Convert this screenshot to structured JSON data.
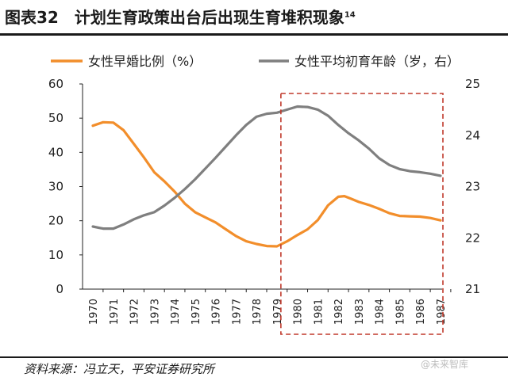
{
  "header": {
    "title": "图表32　计划生育政策出台后出现生育堆积现象",
    "note_ref": "14"
  },
  "footer": {
    "source": "资料来源：冯立天，平安证券研究所",
    "watermark": "@未来智库"
  },
  "chart_data": {
    "type": "line",
    "title": "计划生育政策出台后出现生育堆积现象",
    "x_categories": [
      "1970",
      "1971",
      "1972",
      "1973",
      "1974",
      "1975",
      "1976",
      "1977",
      "1978",
      "1979",
      "1980",
      "1981",
      "1982",
      "1983",
      "1984",
      "1985",
      "1986",
      "1987"
    ],
    "series": [
      {
        "name": "女性早婚比例（%）",
        "axis": "left",
        "color": "#F28E2B",
        "x": [
          1970,
          1970.5,
          1971,
          1971.5,
          1972,
          1972.5,
          1973,
          1973.5,
          1974,
          1974.5,
          1975,
          1975.5,
          1976,
          1976.5,
          1977,
          1977.5,
          1978,
          1978.5,
          1979,
          1979.5,
          1980,
          1980.5,
          1981,
          1981.5,
          1982,
          1982.3,
          1982.6,
          1983,
          1983.5,
          1984,
          1984.5,
          1985,
          1985.5,
          1986,
          1986.5,
          1987
        ],
        "values": [
          47.8,
          48.8,
          48.7,
          46.5,
          42.5,
          38.5,
          34.2,
          31.5,
          28.5,
          25.0,
          22.5,
          21.0,
          19.5,
          17.5,
          15.5,
          14.0,
          13.2,
          12.6,
          12.5,
          14.0,
          15.8,
          17.5,
          20.2,
          24.5,
          27.0,
          27.2,
          26.5,
          25.5,
          24.6,
          23.5,
          22.2,
          21.4,
          21.3,
          21.2,
          20.8,
          20.1
        ]
      },
      {
        "name": "女性平均初育年龄（岁，右）",
        "axis": "right",
        "color": "#7F7F7F",
        "x": [
          1970,
          1970.5,
          1971,
          1971.5,
          1972,
          1972.5,
          1973,
          1973.5,
          1974,
          1974.5,
          1975,
          1975.5,
          1976,
          1976.5,
          1977,
          1977.5,
          1978,
          1978.5,
          1979,
          1979.5,
          1980,
          1980.5,
          1981,
          1981.5,
          1982,
          1982.5,
          1983,
          1983.5,
          1984,
          1984.5,
          1985,
          1985.5,
          1986,
          1986.5,
          1987
        ],
        "values": [
          22.22,
          22.18,
          22.18,
          22.26,
          22.36,
          22.44,
          22.5,
          22.63,
          22.78,
          22.95,
          23.14,
          23.35,
          23.56,
          23.78,
          24.0,
          24.2,
          24.36,
          24.42,
          24.44,
          24.5,
          24.56,
          24.55,
          24.5,
          24.38,
          24.2,
          24.04,
          23.9,
          23.74,
          23.55,
          23.42,
          23.34,
          23.3,
          23.28,
          23.25,
          23.21
        ]
      }
    ],
    "y_left": {
      "min": 0,
      "max": 60,
      "ticks": [
        0,
        10,
        20,
        30,
        40,
        50,
        60
      ]
    },
    "y_right": {
      "min": 21,
      "max": 25,
      "ticks": [
        21,
        22,
        23,
        24,
        25
      ]
    },
    "legend": {
      "position": "top",
      "items": [
        "女性早婚比例（%）",
        "女性平均初育年龄（岁，右）"
      ]
    },
    "highlight_box": {
      "from": 1979,
      "to": 1987,
      "style": "dashed",
      "color": "#C0392B"
    },
    "grid": false
  }
}
